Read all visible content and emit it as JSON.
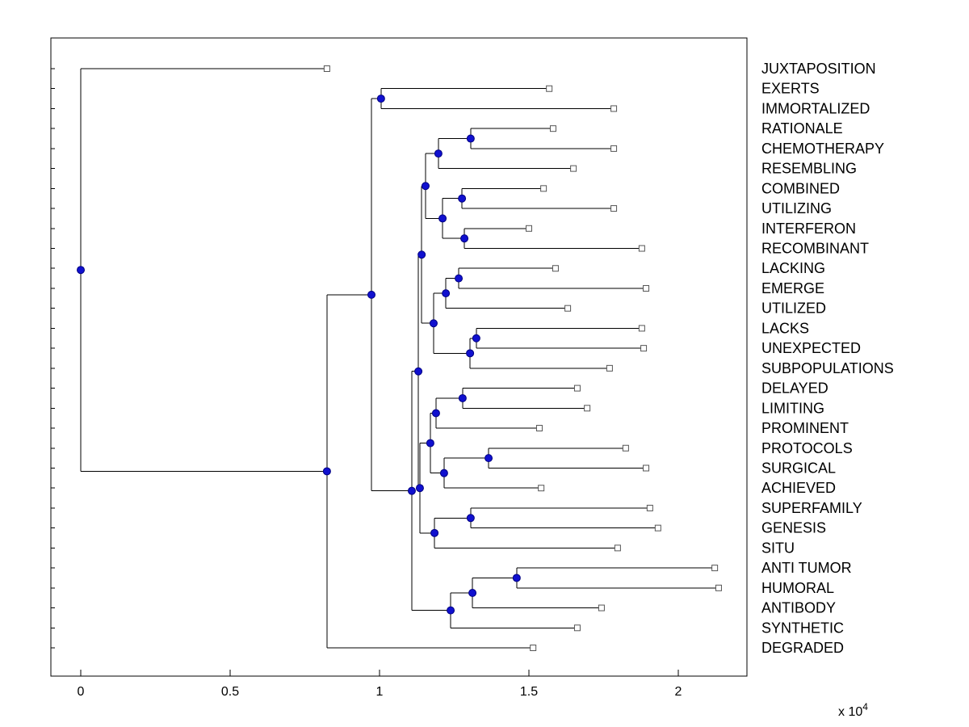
{
  "figure": {
    "background": "#ffffff"
  },
  "chart_data": {
    "type": "dendrogram",
    "orientation": "left-to-right",
    "title": "",
    "x_axis": {
      "ticks": [
        0,
        0.5,
        1,
        1.5,
        2
      ],
      "tick_labels": [
        "0",
        "0.5",
        "1",
        "1.5",
        "2"
      ],
      "unit_scale": 10000,
      "exponent_label": "x 10",
      "exponent": "4",
      "xlim": [
        -1000,
        22300
      ]
    },
    "leaf_order": [
      "JUXTAPOSITION",
      "EXERTS",
      "IMMORTALIZED",
      "RATIONALE",
      "CHEMOTHERAPY",
      "RESEMBLING",
      "COMBINED",
      "UTILIZING",
      "INTERFERON",
      "RECOMBINANT",
      "LACKING",
      "EMERGE",
      "UTILIZED",
      "LACKS",
      "UNEXPECTED",
      "SUBPOPULATIONS",
      "DELAYED",
      "LIMITING",
      "PROMINENT",
      "PROTOCOLS",
      "SURGICAL",
      "ACHIEVED",
      "SUPERFAMILY",
      "GENESIS",
      "SITU",
      "ANTI TUMOR",
      "HUMORAL",
      "ANTIBODY",
      "SYNTHETIC",
      "DEGRADED"
    ],
    "colors": {
      "branch": "#000000",
      "axis": "#000000",
      "internal_node_fill": "#1010cf",
      "internal_node_edge": "#000080",
      "leaf_marker_fill": "#ffffff",
      "leaf_marker_edge": "#555555",
      "label_color": "#000000"
    },
    "tree": {
      "x": 0,
      "children": [
        {
          "name": "JUXTAPOSITION",
          "x": 8240
        },
        {
          "x": 8240,
          "children": [
            {
              "x": 9730,
              "children": [
                {
                  "x": 10050,
                  "children": [
                    {
                      "name": "EXERTS",
                      "x": 15680
                    },
                    {
                      "name": "IMMORTALIZED",
                      "x": 17840
                    }
                  ]
                },
                {
                  "x": 11080,
                  "children": [
                    {
                      "x": 11300,
                      "children": [
                        {
                          "x": 11410,
                          "children": [
                            {
                              "x": 11540,
                              "children": [
                                {
                                  "x": 11970,
                                  "children": [
                                    {
                                      "x": 13050,
                                      "children": [
                                        {
                                          "name": "RATIONALE",
                                          "x": 15810
                                        },
                                        {
                                          "name": "CHEMOTHERAPY",
                                          "x": 17840
                                        }
                                      ]
                                    },
                                    {
                                      "name": "RESEMBLING",
                                      "x": 16490
                                    }
                                  ]
                                },
                                {
                                  "x": 12110,
                                  "children": [
                                    {
                                      "x": 12760,
                                      "children": [
                                        {
                                          "name": "COMBINED",
                                          "x": 15490
                                        },
                                        {
                                          "name": "UTILIZING",
                                          "x": 17840
                                        }
                                      ]
                                    },
                                    {
                                      "x": 12840,
                                      "children": [
                                        {
                                          "name": "INTERFERON",
                                          "x": 15000
                                        },
                                        {
                                          "name": "RECOMBINANT",
                                          "x": 18780
                                        }
                                      ]
                                    }
                                  ]
                                }
                              ]
                            },
                            {
                              "x": 11810,
                              "children": [
                                {
                                  "x": 12220,
                                  "children": [
                                    {
                                      "x": 12650,
                                      "children": [
                                        {
                                          "name": "LACKING",
                                          "x": 15890
                                        },
                                        {
                                          "name": "EMERGE",
                                          "x": 18920
                                        }
                                      ]
                                    },
                                    {
                                      "name": "UTILIZED",
                                      "x": 16300
                                    }
                                  ]
                                },
                                {
                                  "x": 13030,
                                  "children": [
                                    {
                                      "x": 13240,
                                      "children": [
                                        {
                                          "name": "LACKS",
                                          "x": 18780
                                        },
                                        {
                                          "name": "UNEXPECTED",
                                          "x": 18840
                                        }
                                      ]
                                    },
                                    {
                                      "name": "SUBPOPULATIONS",
                                      "x": 17700
                                    }
                                  ]
                                }
                              ]
                            }
                          ]
                        },
                        {
                          "x": 11350,
                          "children": [
                            {
                              "x": 11700,
                              "children": [
                                {
                                  "x": 11890,
                                  "children": [
                                    {
                                      "x": 12780,
                                      "children": [
                                        {
                                          "name": "DELAYED",
                                          "x": 16620
                                        },
                                        {
                                          "name": "LIMITING",
                                          "x": 16950
                                        }
                                      ]
                                    },
                                    {
                                      "name": "PROMINENT",
                                      "x": 15350
                                    }
                                  ]
                                },
                                {
                                  "x": 12160,
                                  "children": [
                                    {
                                      "x": 13650,
                                      "children": [
                                        {
                                          "name": "PROTOCOLS",
                                          "x": 18240
                                        },
                                        {
                                          "name": "SURGICAL",
                                          "x": 18920
                                        }
                                      ]
                                    },
                                    {
                                      "name": "ACHIEVED",
                                      "x": 15410
                                    }
                                  ]
                                }
                              ]
                            },
                            {
                              "x": 11840,
                              "children": [
                                {
                                  "x": 13050,
                                  "children": [
                                    {
                                      "name": "SUPERFAMILY",
                                      "x": 19050
                                    },
                                    {
                                      "name": "GENESIS",
                                      "x": 19320
                                    }
                                  ]
                                },
                                {
                                  "name": "SITU",
                                  "x": 17970
                                }
                              ]
                            }
                          ]
                        }
                      ]
                    },
                    {
                      "x": 12380,
                      "children": [
                        {
                          "x": 13110,
                          "children": [
                            {
                              "x": 14590,
                              "children": [
                                {
                                  "name": "ANTI TUMOR",
                                  "x": 21220
                                },
                                {
                                  "name": "HUMORAL",
                                  "x": 21350
                                }
                              ]
                            },
                            {
                              "name": "ANTIBODY",
                              "x": 17430
                            }
                          ]
                        },
                        {
                          "name": "SYNTHETIC",
                          "x": 16620
                        }
                      ]
                    }
                  ]
                }
              ]
            },
            {
              "name": "DEGRADED",
              "x": 15140
            }
          ]
        }
      ]
    }
  }
}
